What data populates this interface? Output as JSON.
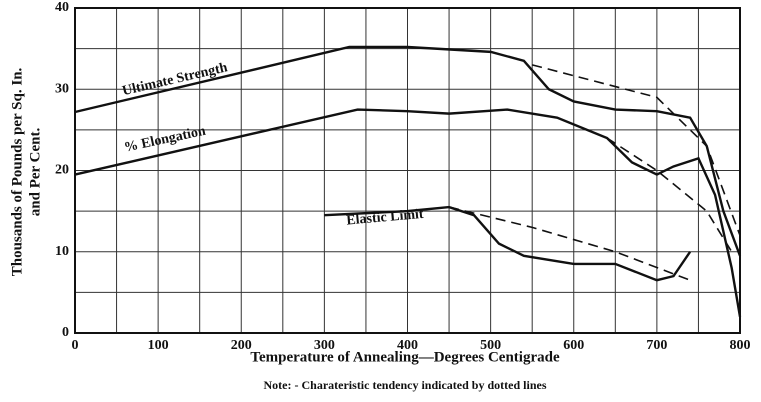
{
  "chart_data": {
    "type": "line",
    "xlabel": "Temperature of Annealing—Degrees Centigrade",
    "ylabel": [
      "Thousands of Pounds per Sq. In.",
      "and Per Cent."
    ],
    "note": "Note: - Charateristic tendency indicated by dotted lines",
    "xlim": [
      0,
      800
    ],
    "xticks": [
      0,
      100,
      200,
      300,
      400,
      500,
      600,
      700,
      800
    ],
    "ylim": [
      0,
      40
    ],
    "yticks": [
      0,
      10,
      20,
      30,
      40
    ],
    "xgrid": [
      0,
      50,
      100,
      150,
      200,
      250,
      300,
      350,
      400,
      450,
      500,
      550,
      600,
      650,
      700,
      750,
      800
    ],
    "ygrid": [
      0,
      5,
      10,
      15,
      20,
      25,
      30,
      35,
      40
    ],
    "color": "#111",
    "series": [
      {
        "name": "Ultimate Strength",
        "style": "solid",
        "x": [
          0,
          330,
          400,
          500,
          540,
          570,
          600,
          650,
          700,
          740,
          760,
          780,
          800
        ],
        "values": [
          27.2,
          35.2,
          35.2,
          34.6,
          33.5,
          30,
          28.5,
          27.5,
          27.3,
          26.5,
          23,
          15,
          9.5
        ]
      },
      {
        "name": "% Elongation",
        "style": "solid",
        "x": [
          0,
          340,
          400,
          450,
          520,
          580,
          640,
          670,
          700,
          720,
          750,
          770,
          790,
          800
        ],
        "values": [
          19.5,
          27.5,
          27.3,
          27,
          27.5,
          26.5,
          24,
          21,
          19.5,
          20.5,
          21.5,
          17,
          8,
          2
        ]
      },
      {
        "name": "Elastic Limit",
        "style": "solid",
        "x": [
          300,
          400,
          450,
          480,
          510,
          540,
          600,
          650,
          700,
          720,
          740
        ],
        "values": [
          14.5,
          15,
          15.5,
          14.5,
          11,
          9.5,
          8.5,
          8.5,
          6.5,
          7,
          10
        ]
      },
      {
        "style": "dashed",
        "x": [
          550,
          700,
          760,
          800
        ],
        "values": [
          33,
          29,
          23,
          12
        ]
      },
      {
        "style": "dashed",
        "x": [
          640,
          700,
          760,
          790
        ],
        "values": [
          24,
          20,
          15,
          10
        ]
      },
      {
        "style": "dashed",
        "x": [
          450,
          550,
          650,
          740
        ],
        "values": [
          15.5,
          13,
          10,
          6.5
        ]
      }
    ]
  }
}
